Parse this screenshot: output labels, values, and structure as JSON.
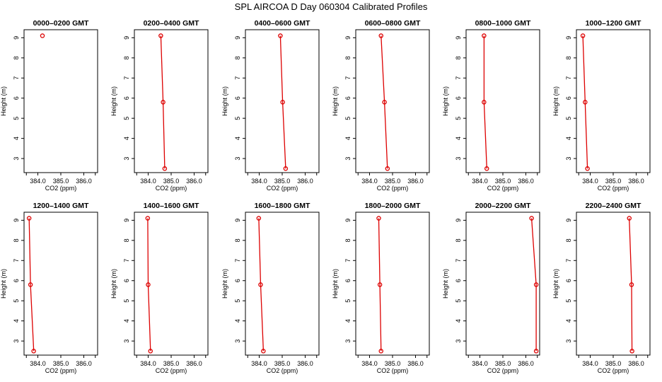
{
  "figure": {
    "title": "SPL AIRCOA D  Day 060304  Calibrated Profiles"
  },
  "colors": {
    "series": "#dd0000",
    "axes": "#000000",
    "background": "#ffffff"
  },
  "chart_data": [
    {
      "type": "line",
      "title": "0000–0200 GMT",
      "xlabel": "CO2 (ppm)",
      "ylabel": "Height (m)",
      "xlim": [
        383.4,
        386.6
      ],
      "ylim": [
        2.3,
        9.4
      ],
      "xticks": [
        384.0,
        385.0,
        386.0
      ],
      "xtick_labels": [
        "384.0",
        "385.0",
        "386.0"
      ],
      "yticks": [
        3,
        4,
        5,
        6,
        7,
        8,
        9
      ],
      "ytick_labels": [
        "3",
        "4",
        "5",
        "6",
        "7",
        "8",
        "9"
      ],
      "points": [
        {
          "x": 384.2,
          "y": 9.1
        }
      ]
    },
    {
      "type": "line",
      "title": "0200–0400 GMT",
      "xlabel": "CO2 (ppm)",
      "ylabel": "Height (m)",
      "xlim": [
        383.4,
        386.6
      ],
      "ylim": [
        2.3,
        9.4
      ],
      "xticks": [
        384.0,
        385.0,
        386.0
      ],
      "xtick_labels": [
        "384.0",
        "385.0",
        "386.0"
      ],
      "yticks": [
        3,
        4,
        5,
        6,
        7,
        8,
        9
      ],
      "ytick_labels": [
        "3",
        "4",
        "5",
        "6",
        "7",
        "8",
        "9"
      ],
      "points": [
        {
          "x": 384.55,
          "y": 9.1
        },
        {
          "x": 384.65,
          "y": 5.8
        },
        {
          "x": 384.72,
          "y": 2.5
        }
      ]
    },
    {
      "type": "line",
      "title": "0400–0600 GMT",
      "xlabel": "CO2 (ppm)",
      "ylabel": "Height (m)",
      "xlim": [
        383.4,
        386.6
      ],
      "ylim": [
        2.3,
        9.4
      ],
      "xticks": [
        384.0,
        385.0,
        386.0
      ],
      "xtick_labels": [
        "384.0",
        "385.0",
        "386.0"
      ],
      "yticks": [
        3,
        4,
        5,
        6,
        7,
        8,
        9
      ],
      "ytick_labels": [
        "3",
        "4",
        "5",
        "6",
        "7",
        "8",
        "9"
      ],
      "points": [
        {
          "x": 384.92,
          "y": 9.1
        },
        {
          "x": 385.02,
          "y": 5.8
        },
        {
          "x": 385.15,
          "y": 2.5
        }
      ]
    },
    {
      "type": "line",
      "title": "0600–0800 GMT",
      "xlabel": "CO2 (ppm)",
      "ylabel": "Height (m)",
      "xlim": [
        383.4,
        386.6
      ],
      "ylim": [
        2.3,
        9.4
      ],
      "xticks": [
        384.0,
        385.0,
        386.0
      ],
      "xtick_labels": [
        "384.0",
        "385.0",
        "386.0"
      ],
      "yticks": [
        3,
        4,
        5,
        6,
        7,
        8,
        9
      ],
      "ytick_labels": [
        "3",
        "4",
        "5",
        "6",
        "7",
        "8",
        "9"
      ],
      "points": [
        {
          "x": 384.5,
          "y": 9.1
        },
        {
          "x": 384.65,
          "y": 5.8
        },
        {
          "x": 384.78,
          "y": 2.5
        }
      ]
    },
    {
      "type": "line",
      "title": "0800–1000 GMT",
      "xlabel": "CO2 (ppm)",
      "ylabel": "Height (m)",
      "xlim": [
        383.4,
        386.6
      ],
      "ylim": [
        2.3,
        9.4
      ],
      "xticks": [
        384.0,
        385.0,
        386.0
      ],
      "xtick_labels": [
        "384.0",
        "385.0",
        "386.0"
      ],
      "yticks": [
        3,
        4,
        5,
        6,
        7,
        8,
        9
      ],
      "ytick_labels": [
        "3",
        "4",
        "5",
        "6",
        "7",
        "8",
        "9"
      ],
      "points": [
        {
          "x": 384.18,
          "y": 9.1
        },
        {
          "x": 384.18,
          "y": 5.8
        },
        {
          "x": 384.3,
          "y": 2.5
        }
      ]
    },
    {
      "type": "line",
      "title": "1000–1200 GMT",
      "xlabel": "CO2 (ppm)",
      "ylabel": "Height (m)",
      "xlim": [
        383.4,
        386.6
      ],
      "ylim": [
        2.3,
        9.4
      ],
      "xticks": [
        384.0,
        385.0,
        386.0
      ],
      "xtick_labels": [
        "384.0",
        "385.0",
        "386.0"
      ],
      "yticks": [
        3,
        4,
        5,
        6,
        7,
        8,
        9
      ],
      "ytick_labels": [
        "3",
        "4",
        "5",
        "6",
        "7",
        "8",
        "9"
      ],
      "points": [
        {
          "x": 383.68,
          "y": 9.1
        },
        {
          "x": 383.78,
          "y": 5.8
        },
        {
          "x": 383.88,
          "y": 2.5
        }
      ]
    },
    {
      "type": "line",
      "title": "1200–1400 GMT",
      "xlabel": "CO2 (ppm)",
      "ylabel": "Height (m)",
      "xlim": [
        383.4,
        386.6
      ],
      "ylim": [
        2.3,
        9.4
      ],
      "xticks": [
        384.0,
        385.0,
        386.0
      ],
      "xtick_labels": [
        "384.0",
        "385.0",
        "386.0"
      ],
      "yticks": [
        3,
        4,
        5,
        6,
        7,
        8,
        9
      ],
      "ytick_labels": [
        "3",
        "4",
        "5",
        "6",
        "7",
        "8",
        "9"
      ],
      "points": [
        {
          "x": 383.62,
          "y": 9.1
        },
        {
          "x": 383.68,
          "y": 5.8
        },
        {
          "x": 383.82,
          "y": 2.5
        }
      ]
    },
    {
      "type": "line",
      "title": "1400–1600 GMT",
      "xlabel": "CO2 (ppm)",
      "ylabel": "Height (m)",
      "xlim": [
        383.4,
        386.6
      ],
      "ylim": [
        2.3,
        9.4
      ],
      "xticks": [
        384.0,
        385.0,
        386.0
      ],
      "xtick_labels": [
        "384.0",
        "385.0",
        "386.0"
      ],
      "yticks": [
        3,
        4,
        5,
        6,
        7,
        8,
        9
      ],
      "ytick_labels": [
        "3",
        "4",
        "5",
        "6",
        "7",
        "8",
        "9"
      ],
      "points": [
        {
          "x": 383.98,
          "y": 9.1
        },
        {
          "x": 384.0,
          "y": 5.8
        },
        {
          "x": 384.1,
          "y": 2.5
        }
      ]
    },
    {
      "type": "line",
      "title": "1600–1800 GMT",
      "xlabel": "CO2 (ppm)",
      "ylabel": "Height (m)",
      "xlim": [
        383.4,
        386.6
      ],
      "ylim": [
        2.3,
        9.4
      ],
      "xticks": [
        384.0,
        385.0,
        386.0
      ],
      "xtick_labels": [
        "384.0",
        "385.0",
        "386.0"
      ],
      "yticks": [
        3,
        4,
        5,
        6,
        7,
        8,
        9
      ],
      "ytick_labels": [
        "3",
        "4",
        "5",
        "6",
        "7",
        "8",
        "9"
      ],
      "points": [
        {
          "x": 383.98,
          "y": 9.1
        },
        {
          "x": 384.06,
          "y": 5.8
        },
        {
          "x": 384.18,
          "y": 2.5
        }
      ]
    },
    {
      "type": "line",
      "title": "1800–2000 GMT",
      "xlabel": "CO2 (ppm)",
      "ylabel": "Height (m)",
      "xlim": [
        383.4,
        386.6
      ],
      "ylim": [
        2.3,
        9.4
      ],
      "xticks": [
        384.0,
        385.0,
        386.0
      ],
      "xtick_labels": [
        "384.0",
        "385.0",
        "386.0"
      ],
      "yticks": [
        3,
        4,
        5,
        6,
        7,
        8,
        9
      ],
      "ytick_labels": [
        "3",
        "4",
        "5",
        "6",
        "7",
        "8",
        "9"
      ],
      "points": [
        {
          "x": 384.4,
          "y": 9.1
        },
        {
          "x": 384.45,
          "y": 5.8
        },
        {
          "x": 384.5,
          "y": 2.5
        }
      ]
    },
    {
      "type": "line",
      "title": "2000–2200 GMT",
      "xlabel": "CO2 (ppm)",
      "ylabel": "Height (m)",
      "xlim": [
        383.4,
        386.6
      ],
      "ylim": [
        2.3,
        9.4
      ],
      "xticks": [
        384.0,
        385.0,
        386.0
      ],
      "xtick_labels": [
        "384.0",
        "385.0",
        "386.0"
      ],
      "yticks": [
        3,
        4,
        5,
        6,
        7,
        8,
        9
      ],
      "ytick_labels": [
        "3",
        "4",
        "5",
        "6",
        "7",
        "8",
        "9"
      ],
      "points": [
        {
          "x": 386.25,
          "y": 9.1
        },
        {
          "x": 386.45,
          "y": 5.8
        },
        {
          "x": 386.45,
          "y": 2.5
        }
      ]
    },
    {
      "type": "line",
      "title": "2200–2400 GMT",
      "xlabel": "CO2 (ppm)",
      "ylabel": "Height (m)",
      "xlim": [
        383.4,
        386.6
      ],
      "ylim": [
        2.3,
        9.4
      ],
      "xticks": [
        384.0,
        385.0,
        386.0
      ],
      "xtick_labels": [
        "384.0",
        "385.0",
        "386.0"
      ],
      "yticks": [
        3,
        4,
        5,
        6,
        7,
        8,
        9
      ],
      "ytick_labels": [
        "3",
        "4",
        "5",
        "6",
        "7",
        "8",
        "9"
      ],
      "points": [
        {
          "x": 385.7,
          "y": 9.1
        },
        {
          "x": 385.8,
          "y": 5.8
        },
        {
          "x": 385.82,
          "y": 2.5
        }
      ]
    }
  ]
}
